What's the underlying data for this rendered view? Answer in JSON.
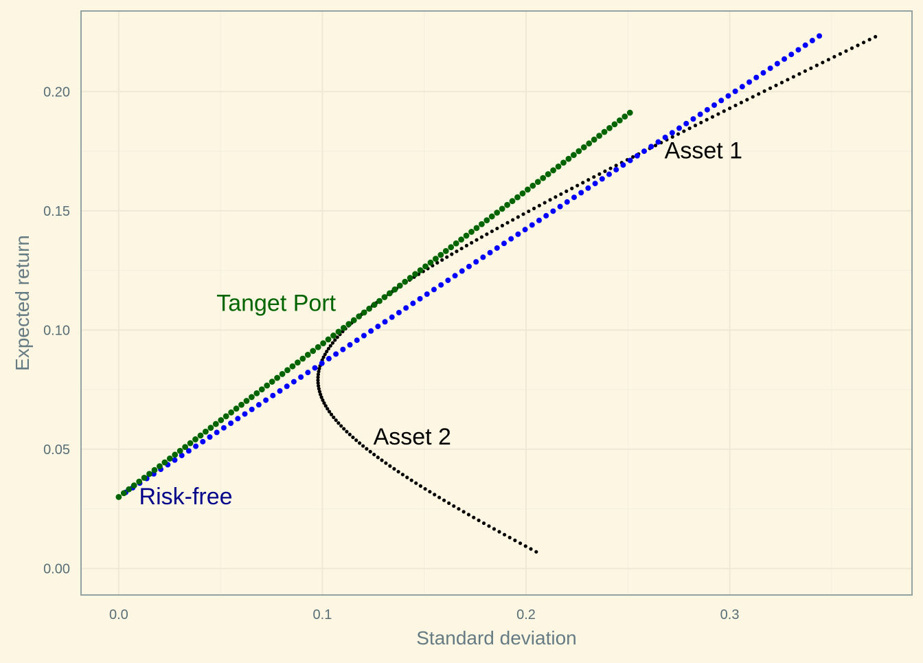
{
  "colors": {
    "background": "#FDF6E3",
    "panel_border": "#93A1A1",
    "grid_major": "#EEE8D5",
    "grid_minor": "#F3EEDD",
    "tick_label": "#586E75",
    "axis_title": "#657B83",
    "frontier": "#000000",
    "cml_optimal": "#006400",
    "cml_asset": "#0000FF",
    "label_tangent": "#006400",
    "label_riskfree": "#00008B",
    "label_asset": "#000000"
  },
  "chart_data": {
    "type": "scatter",
    "xlabel": "Standard deviation",
    "ylabel": "Expected return",
    "xlim": [
      -0.0185,
      0.3895
    ],
    "ylim": [
      -0.0111,
      0.2338
    ],
    "x_ticks": [
      0.0,
      0.1,
      0.2,
      0.3
    ],
    "x_tick_labels": [
      "0.0",
      "0.1",
      "0.2",
      "0.3"
    ],
    "y_ticks": [
      0.0,
      0.05,
      0.1,
      0.15,
      0.2
    ],
    "y_tick_labels": [
      "0.00",
      "0.05",
      "0.10",
      "0.15",
      "0.20"
    ],
    "grid": true,
    "series": [
      {
        "kind": "frontier",
        "color": "#000000",
        "asset1": {
          "mu": 0.175,
          "sigma": 0.258
        },
        "asset2": {
          "mu": 0.055,
          "sigma": 0.115
        },
        "rho": -0.164,
        "w_range": [
          -0.4,
          1.4
        ],
        "n_points": 181
      },
      {
        "kind": "line",
        "color": "#0000FF",
        "x_range": [
          0.0,
          0.344
        ],
        "intercept": 0.03,
        "slope": 0.562,
        "n_points": 101
      },
      {
        "kind": "line",
        "color": "#006400",
        "x_range": [
          0.0,
          0.251
        ],
        "intercept": 0.03,
        "slope": 0.642,
        "n_points": 101
      }
    ],
    "annotations": [
      {
        "text": "Asset 1",
        "x": 0.268,
        "y": 0.172,
        "color": "#000000"
      },
      {
        "text": "Asset 2",
        "x": 0.125,
        "y": 0.052,
        "color": "#000000"
      },
      {
        "text": "Tanget Port",
        "x": 0.048,
        "y": 0.108,
        "color": "#006400"
      },
      {
        "text": "Risk-free",
        "x": 0.01,
        "y": 0.027,
        "color": "#00008B"
      }
    ]
  }
}
